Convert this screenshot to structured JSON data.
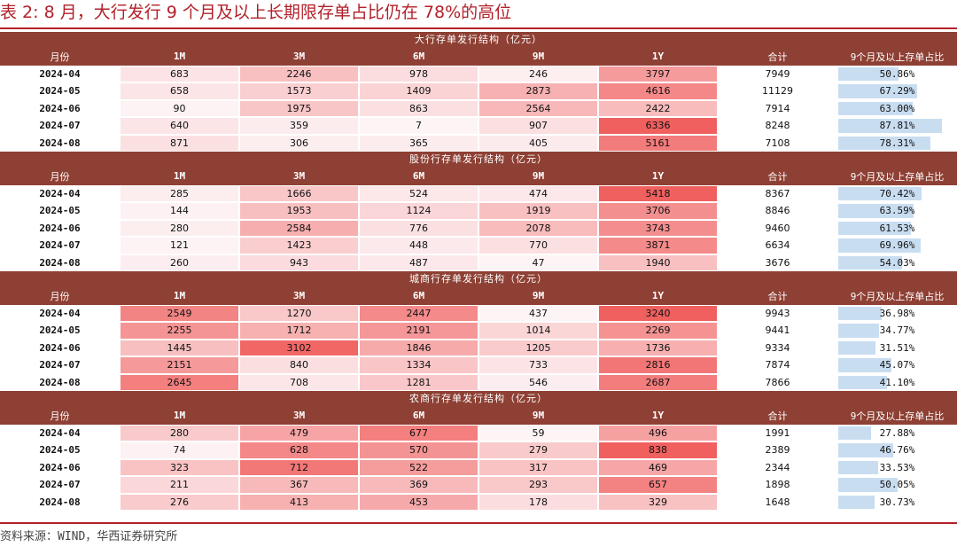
{
  "title": "表 2:  8 月，大行发行 9 个月及以上长期限存单占比仍在 78%的高位",
  "columns": [
    "月份",
    "1M",
    "3M",
    "6M",
    "9M",
    "1Y",
    "合计",
    "9个月及以上存单占比"
  ],
  "sections": [
    {
      "title": "大行存单发行结构（亿元）",
      "rows": [
        {
          "month": "2024-04",
          "v": [
            683,
            2246,
            978,
            246,
            3797
          ],
          "total": "7949",
          "ratio": "50.86%",
          "ratio_value": 50.86
        },
        {
          "month": "2024-05",
          "v": [
            658,
            1573,
            1409,
            2873,
            4616
          ],
          "total": "11129",
          "ratio": "67.29%",
          "ratio_value": 67.29
        },
        {
          "month": "2024-06",
          "v": [
            90,
            1975,
            863,
            2564,
            2422
          ],
          "total": "7914",
          "ratio": "63.00%",
          "ratio_value": 63.0
        },
        {
          "month": "2024-07",
          "v": [
            640,
            359,
            7,
            907,
            6336
          ],
          "total": "8248",
          "ratio": "87.81%",
          "ratio_value": 87.81
        },
        {
          "month": "2024-08",
          "v": [
            871,
            306,
            365,
            405,
            5161
          ],
          "total": "7108",
          "ratio": "78.31%",
          "ratio_value": 78.31
        }
      ]
    },
    {
      "title": "股份行存单发行结构（亿元）",
      "rows": [
        {
          "month": "2024-04",
          "v": [
            285,
            1666,
            524,
            474,
            5418
          ],
          "total": "8367",
          "ratio": "70.42%",
          "ratio_value": 70.42
        },
        {
          "month": "2024-05",
          "v": [
            144,
            1953,
            1124,
            1919,
            3706
          ],
          "total": "8846",
          "ratio": "63.59%",
          "ratio_value": 63.59
        },
        {
          "month": "2024-06",
          "v": [
            280,
            2584,
            776,
            2078,
            3743
          ],
          "total": "9460",
          "ratio": "61.53%",
          "ratio_value": 61.53
        },
        {
          "month": "2024-07",
          "v": [
            121,
            1423,
            448,
            770,
            3871
          ],
          "total": "6634",
          "ratio": "69.96%",
          "ratio_value": 69.96
        },
        {
          "month": "2024-08",
          "v": [
            260,
            943,
            487,
            47,
            1940
          ],
          "total": "3676",
          "ratio": "54.03%",
          "ratio_value": 54.03
        }
      ]
    },
    {
      "title": "城商行存单发行结构（亿元）",
      "rows": [
        {
          "month": "2024-04",
          "v": [
            2549,
            1270,
            2447,
            437,
            3240
          ],
          "total": "9943",
          "ratio": "36.98%",
          "ratio_value": 36.98
        },
        {
          "month": "2024-05",
          "v": [
            2255,
            1712,
            2191,
            1014,
            2269
          ],
          "total": "9441",
          "ratio": "34.77%",
          "ratio_value": 34.77
        },
        {
          "month": "2024-06",
          "v": [
            1445,
            3102,
            1846,
            1205,
            1736
          ],
          "total": "9334",
          "ratio": "31.51%",
          "ratio_value": 31.51
        },
        {
          "month": "2024-07",
          "v": [
            2151,
            840,
            1334,
            733,
            2816
          ],
          "total": "7874",
          "ratio": "45.07%",
          "ratio_value": 45.07
        },
        {
          "month": "2024-08",
          "v": [
            2645,
            708,
            1281,
            546,
            2687
          ],
          "total": "7866",
          "ratio": "41.10%",
          "ratio_value": 41.1
        }
      ]
    },
    {
      "title": "农商行存单发行结构（亿元）",
      "rows": [
        {
          "month": "2024-04",
          "v": [
            280,
            479,
            677,
            59,
            496
          ],
          "total": "1991",
          "ratio": "27.88%",
          "ratio_value": 27.88
        },
        {
          "month": "2024-05",
          "v": [
            74,
            628,
            570,
            279,
            838
          ],
          "total": "2389",
          "ratio": "46.76%",
          "ratio_value": 46.76
        },
        {
          "month": "2024-06",
          "v": [
            323,
            712,
            522,
            317,
            469
          ],
          "total": "2344",
          "ratio": "33.53%",
          "ratio_value": 33.53
        },
        {
          "month": "2024-07",
          "v": [
            211,
            367,
            369,
            293,
            657
          ],
          "total": "1898",
          "ratio": "50.05%",
          "ratio_value": 50.05
        },
        {
          "month": "2024-08",
          "v": [
            276,
            413,
            453,
            178,
            329
          ],
          "total": "1648",
          "ratio": "30.73%",
          "ratio_value": 30.73
        }
      ]
    }
  ],
  "source": "资料来源：WIND，华西证券研究所",
  "colors": {
    "title_red": "#b3202a",
    "header_brown": "#8e4034",
    "heat_high": "#f0605f",
    "heat_low": "#fdf4f6",
    "ratio_bar": "#c9ddf1"
  }
}
